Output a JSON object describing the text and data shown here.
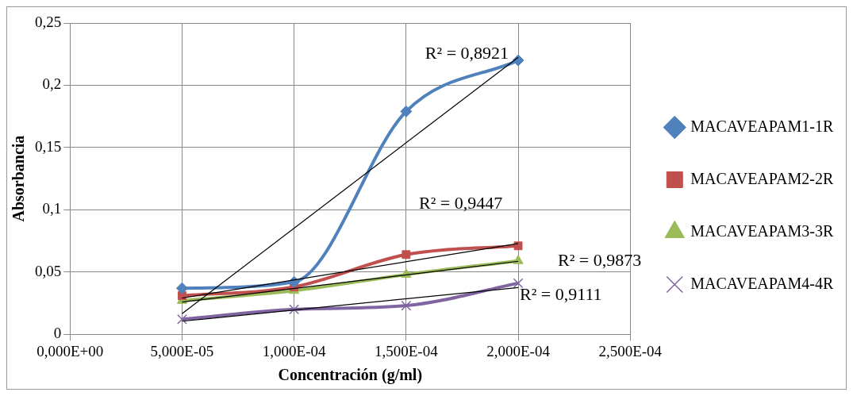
{
  "chart_data": {
    "type": "line",
    "xlabel": "Concentración (g/ml)",
    "ylabel": "Absorbancia",
    "categories": [
      "0,000E+00",
      "5,000E-05",
      "1,000E-04",
      "1,500E-04",
      "2,000E-04",
      "2,500E-04"
    ],
    "ylim": [
      0,
      0.25
    ],
    "yticks": [
      0,
      {
        "value": 0.05,
        "label": "0,05"
      },
      {
        "value": 0.1,
        "label": "0,1"
      },
      {
        "value": 0.15,
        "label": "0,15"
      },
      {
        "value": 0.2,
        "label": "0,2"
      },
      {
        "value": 0.25,
        "label": "0,25"
      }
    ],
    "grid": true,
    "legend": "right",
    "series": [
      {
        "name": "MACAVEAPAM1-1R",
        "color": "#4f81bd",
        "marker": "diamond",
        "values": [
          null,
          0.037,
          0.042,
          0.179,
          0.22,
          null
        ]
      },
      {
        "name": "MACAVEAPAM2-2R",
        "color": "#c0504d",
        "marker": "square",
        "values": [
          null,
          0.031,
          0.038,
          0.064,
          0.071,
          null
        ]
      },
      {
        "name": "MACAVEAPAM3-3R",
        "color": "#9bbb59",
        "marker": "triangle",
        "values": [
          null,
          0.027,
          0.035,
          0.048,
          0.059,
          null
        ]
      },
      {
        "name": "MACAVEAPAM4-4R",
        "color": "#8064a2",
        "marker": "cross",
        "values": [
          null,
          0.012,
          0.02,
          0.023,
          0.041,
          null
        ]
      },
      {
        "type": "line",
        "color": "#000000",
        "marker": "none",
        "values": [
          null,
          0.0166,
          null,
          null,
          0.2224,
          null
        ]
      },
      {
        "type": "line",
        "color": "#000000",
        "marker": "none",
        "values": [
          null,
          0.0291,
          null,
          null,
          0.0729,
          null
        ]
      },
      {
        "type": "line",
        "color": "#000000",
        "marker": "none",
        "values": [
          null,
          0.0259,
          null,
          null,
          0.0586,
          null
        ]
      },
      {
        "type": "line",
        "color": "#000000",
        "marker": "none",
        "values": [
          null,
          0.0105,
          null,
          null,
          0.0375,
          null
        ]
      }
    ],
    "annotations": [
      "R² = 0,8921",
      "R² = 0,9447",
      "R² = 0,9873",
      "R² = 0,9111"
    ]
  }
}
